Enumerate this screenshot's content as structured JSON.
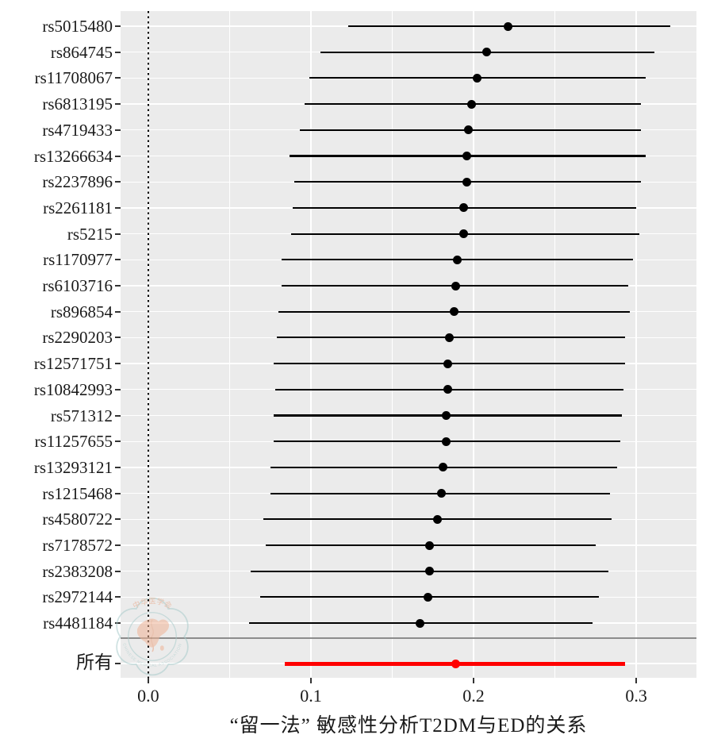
{
  "chart_data": {
    "type": "forest",
    "title": "“留一法” 敏感性分析T2DM与ED的关系",
    "xlabel": "“留一法” 敏感性分析T2DM与ED的关系",
    "ylabel": "",
    "xlim": [
      -0.017,
      0.337
    ],
    "x_ticks": [
      0.0,
      0.1,
      0.2,
      0.3
    ],
    "x_tick_labels": [
      "0.0",
      "0.1",
      "0.2",
      "0.3"
    ],
    "x_minor_gridlines": [
      0.05,
      0.15,
      0.25
    ],
    "zero_line": 0.0,
    "grid": true,
    "rows": [
      {
        "label": "rs5015480",
        "est": 0.221,
        "lo": 0.123,
        "hi": 0.321
      },
      {
        "label": "rs864745",
        "est": 0.208,
        "lo": 0.106,
        "hi": 0.311
      },
      {
        "label": "rs11708067",
        "est": 0.202,
        "lo": 0.099,
        "hi": 0.306
      },
      {
        "label": "rs6813195",
        "est": 0.199,
        "lo": 0.096,
        "hi": 0.303
      },
      {
        "label": "rs4719433",
        "est": 0.197,
        "lo": 0.093,
        "hi": 0.303
      },
      {
        "label": "rs13266634",
        "est": 0.196,
        "lo": 0.087,
        "hi": 0.306
      },
      {
        "label": "rs2237896",
        "est": 0.196,
        "lo": 0.09,
        "hi": 0.303
      },
      {
        "label": "rs2261181",
        "est": 0.194,
        "lo": 0.089,
        "hi": 0.3
      },
      {
        "label": "rs5215",
        "est": 0.194,
        "lo": 0.088,
        "hi": 0.302
      },
      {
        "label": "rs1170977",
        "est": 0.19,
        "lo": 0.082,
        "hi": 0.298
      },
      {
        "label": "rs6103716",
        "est": 0.189,
        "lo": 0.082,
        "hi": 0.295
      },
      {
        "label": "rs896854",
        "est": 0.188,
        "lo": 0.08,
        "hi": 0.296
      },
      {
        "label": "rs2290203",
        "est": 0.185,
        "lo": 0.079,
        "hi": 0.293
      },
      {
        "label": "rs12571751",
        "est": 0.184,
        "lo": 0.077,
        "hi": 0.293
      },
      {
        "label": "rs10842993",
        "est": 0.184,
        "lo": 0.078,
        "hi": 0.292
      },
      {
        "label": "rs571312",
        "est": 0.183,
        "lo": 0.077,
        "hi": 0.291
      },
      {
        "label": "rs11257655",
        "est": 0.183,
        "lo": 0.077,
        "hi": 0.29
      },
      {
        "label": "rs13293121",
        "est": 0.181,
        "lo": 0.075,
        "hi": 0.288
      },
      {
        "label": "rs1215468",
        "est": 0.18,
        "lo": 0.075,
        "hi": 0.284
      },
      {
        "label": "rs4580722",
        "est": 0.178,
        "lo": 0.071,
        "hi": 0.285
      },
      {
        "label": "rs7178572",
        "est": 0.173,
        "lo": 0.072,
        "hi": 0.275
      },
      {
        "label": "rs2383208",
        "est": 0.173,
        "lo": 0.063,
        "hi": 0.283
      },
      {
        "label": "rs2972144",
        "est": 0.172,
        "lo": 0.069,
        "hi": 0.277
      },
      {
        "label": "rs4481184",
        "est": 0.167,
        "lo": 0.062,
        "hi": 0.273
      }
    ],
    "all_row": {
      "label": "所有",
      "est": 0.189,
      "lo": 0.084,
      "hi": 0.293
    },
    "legend": null,
    "colors": {
      "panel_background": "#EBEBEB",
      "gridline": "#FFFFFF",
      "point_and_ci": "#000000",
      "all_row": "#FF0000",
      "separator_line": "#8C8C8C",
      "axis_text": "#1A1A1A"
    }
  },
  "watermark": {
    "name": "chinese-medical-association-seal",
    "top_text": "中华医学会",
    "bottom_text": "CHINESE MEDICAL ASSOCIATION",
    "outline_color": "#A8CCCB",
    "map_color": "#F0B496"
  }
}
